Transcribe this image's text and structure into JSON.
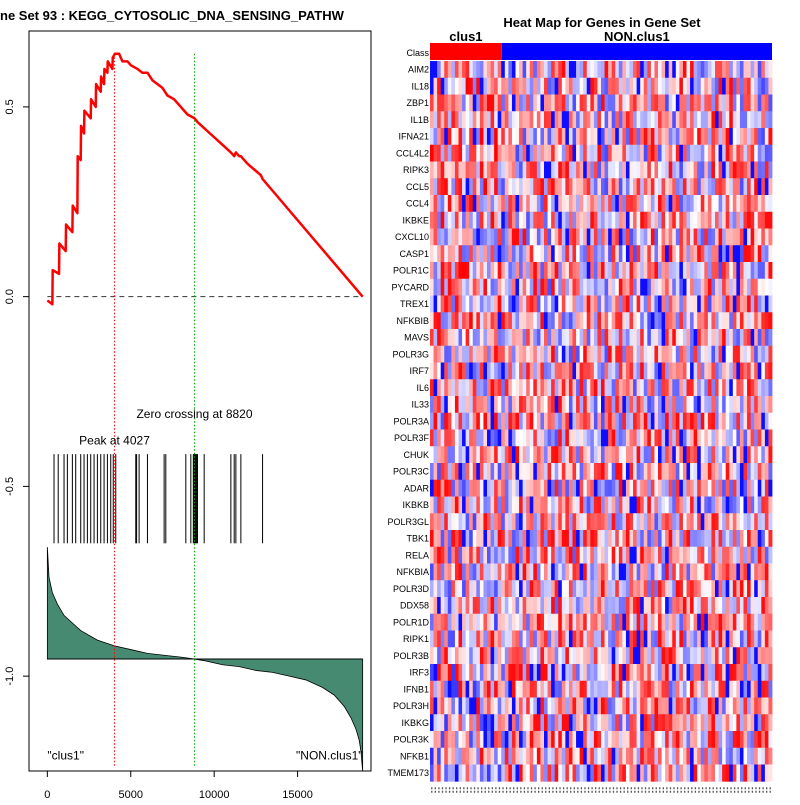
{
  "chart_data": [
    {
      "type": "line",
      "title": "ne Set  93 : KEGG_CYTOSOLIC_DNA_SENSING_PATHW",
      "xlabel": "",
      "ylabel": "",
      "xlim": [
        -1100,
        19400
      ],
      "ylim": [
        -1.25,
        0.7
      ],
      "x_ticks": [
        0,
        5000,
        10000,
        15000
      ],
      "x_tick_labels": [
        "0",
        "5000",
        "10000",
        "15000"
      ],
      "y_ticks": [
        0.5,
        0.0,
        -0.5,
        -1.0
      ],
      "y_tick_labels": [
        "0.5",
        "0.0",
        "-0.5",
        "-1.0"
      ],
      "series": [
        {
          "name": "running enrichment score",
          "color": "#ff0000",
          "x": [
            0,
            300,
            320,
            700,
            720,
            1100,
            1120,
            1500,
            1520,
            1800,
            1820,
            2000,
            2020,
            2200,
            2220,
            2600,
            2620,
            2900,
            2920,
            3200,
            3220,
            3400,
            3420,
            3600,
            3620,
            3900,
            3920,
            4050,
            4300,
            4500,
            4800,
            5000,
            5400,
            5700,
            6000,
            6300,
            6600,
            6900,
            7200,
            7600,
            8000,
            8400,
            8820,
            9000,
            9500,
            10000,
            10500,
            11000,
            11200,
            11300,
            11500,
            11600,
            12000,
            12800,
            12900,
            18900
          ],
          "values": [
            -0.01,
            -0.02,
            0.07,
            0.06,
            0.14,
            0.12,
            0.19,
            0.17,
            0.24,
            0.22,
            0.37,
            0.36,
            0.45,
            0.43,
            0.49,
            0.47,
            0.52,
            0.5,
            0.56,
            0.54,
            0.58,
            0.56,
            0.6,
            0.59,
            0.62,
            0.6,
            0.63,
            0.64,
            0.64,
            0.62,
            0.62,
            0.61,
            0.6,
            0.59,
            0.59,
            0.57,
            0.56,
            0.55,
            0.53,
            0.52,
            0.5,
            0.48,
            0.47,
            0.46,
            0.44,
            0.42,
            0.4,
            0.38,
            0.37,
            0.38,
            0.37,
            0.37,
            0.35,
            0.32,
            0.31,
            0.0
          ]
        },
        {
          "name": "ranked list metric",
          "color": "#468a72",
          "baseline": -0.955,
          "x": [
            0,
            100,
            300,
            600,
            1000,
            1500,
            2000,
            3000,
            4000,
            5000,
            6000,
            7000,
            8000,
            8820,
            9500,
            10500,
            11500,
            12500,
            13500,
            14500,
            15500,
            16500,
            17200,
            17800,
            18200,
            18500,
            18700,
            18800,
            18900
          ],
          "values": [
            -0.66,
            -0.74,
            -0.78,
            -0.81,
            -0.84,
            -0.86,
            -0.88,
            -0.905,
            -0.92,
            -0.93,
            -0.94,
            -0.945,
            -0.95,
            -0.955,
            -0.96,
            -0.97,
            -0.975,
            -0.985,
            -0.99,
            -1.0,
            -1.01,
            -1.03,
            -1.05,
            -1.08,
            -1.11,
            -1.14,
            -1.17,
            -1.2,
            -1.25
          ]
        }
      ],
      "hits": [
        400,
        650,
        1000,
        1200,
        1500,
        1700,
        2000,
        2200,
        2400,
        2600,
        2800,
        3000,
        3200,
        3400,
        3600,
        3800,
        3950,
        4100,
        5300,
        5350,
        5500,
        6000,
        7000,
        7100,
        8300,
        8600,
        8750,
        8800,
        8850,
        8900,
        8950,
        9000,
        9400,
        11000,
        11200,
        11300,
        11600,
        12900
      ],
      "reference_lines": [
        {
          "name": "zero-line",
          "y": 0.0,
          "style": "dashed",
          "color": "#333333"
        },
        {
          "name": "peak-line",
          "x": 4027,
          "style": "dotted",
          "color": "#ff0000"
        },
        {
          "name": "zero-crossing-line",
          "x": 8820,
          "style": "dotted",
          "color": "#00aa00"
        }
      ],
      "annotations": [
        {
          "name": "peak-label",
          "text": "Peak at 4027",
          "x": 4027,
          "y": -0.39
        },
        {
          "name": "zero-crossing-label",
          "text": "Zero crossing at 8820",
          "x": 8820,
          "y": -0.32
        },
        {
          "name": "left-class-label",
          "text": "\"clus1\"",
          "x": 1100,
          "y": -1.22
        },
        {
          "name": "right-class-label",
          "text": "\"NON.clus1\"",
          "x": 16900,
          "y": -1.22
        }
      ]
    },
    {
      "type": "heatmap",
      "title": "Heat Map for Genes in Gene Set",
      "class_row_label": "Class",
      "classes": [
        {
          "name": "clus1",
          "color": "#ff0000",
          "fraction": 0.21
        },
        {
          "name": "NON.clus1",
          "color": "#0000ff",
          "fraction": 0.79
        }
      ],
      "n_columns": 96,
      "value_range": [
        -1,
        1
      ],
      "color_low": "#0000ff",
      "color_mid": "#ffffff",
      "color_high": "#ff0000",
      "genes": [
        "AIM2",
        "IL18",
        "ZBP1",
        "IL1B",
        "IFNA21",
        "CCL4L2",
        "RIPK3",
        "CCL5",
        "CCL4",
        "IKBKE",
        "CXCL10",
        "CASP1",
        "POLR1C",
        "PYCARD",
        "TREX1",
        "NFKBIB",
        "MAVS",
        "POLR3G",
        "IRF7",
        "IL6",
        "IL33",
        "POLR3A",
        "POLR3F",
        "CHUK",
        "POLR3C",
        "ADAR",
        "IKBKB",
        "POLR3GL",
        "TBK1",
        "RELA",
        "NFKBIA",
        "POLR3D",
        "DDX58",
        "POLR1D",
        "RIPK1",
        "POLR3B",
        "IRF3",
        "IFNB1",
        "POLR3H",
        "IKBKG",
        "POLR3K",
        "NFKB1",
        "TMEM173"
      ]
    }
  ]
}
